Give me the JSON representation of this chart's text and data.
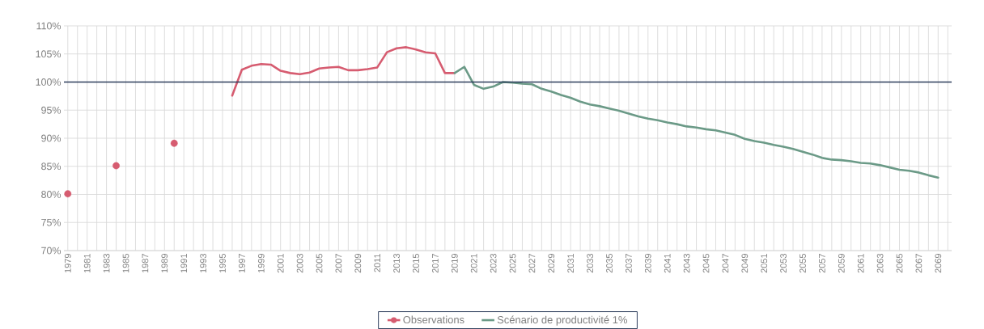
{
  "chart_data": {
    "type": "line",
    "grid": true,
    "legend": "bottom",
    "xlim": [
      1978.6,
      2070.4
    ],
    "ylim": [
      70,
      110
    ],
    "yticks": [
      {
        "value": 70,
        "label": "70%"
      },
      {
        "value": 75,
        "label": "75%"
      },
      {
        "value": 80,
        "label": "80%"
      },
      {
        "value": 85,
        "label": "85%"
      },
      {
        "value": 90,
        "label": "90%"
      },
      {
        "value": 95,
        "label": "95%"
      },
      {
        "value": 100,
        "label": "100%"
      },
      {
        "value": 105,
        "label": "105%"
      },
      {
        "value": 110,
        "label": "110%"
      }
    ],
    "xticks": [
      1979,
      {
        "value": 1980,
        "label": null
      },
      1981,
      {
        "value": 1982,
        "label": null
      },
      1983,
      {
        "value": 1984,
        "label": null
      },
      1985,
      {
        "value": 1986,
        "label": null
      },
      1987,
      {
        "value": 1988,
        "label": null
      },
      1989,
      {
        "value": 1990,
        "label": null
      },
      1991,
      {
        "value": 1992,
        "label": null
      },
      1993,
      {
        "value": 1994,
        "label": null
      },
      1995,
      {
        "value": 1996,
        "label": null
      },
      1997,
      {
        "value": 1998,
        "label": null
      },
      1999,
      {
        "value": 2000,
        "label": null
      },
      2001,
      {
        "value": 2002,
        "label": null
      },
      2003,
      {
        "value": 2004,
        "label": null
      },
      2005,
      {
        "value": 2006,
        "label": null
      },
      2007,
      {
        "value": 2008,
        "label": null
      },
      2009,
      {
        "value": 2010,
        "label": null
      },
      2011,
      {
        "value": 2012,
        "label": null
      },
      2013,
      {
        "value": 2014,
        "label": null
      },
      2015,
      {
        "value": 2016,
        "label": null
      },
      2017,
      {
        "value": 2018,
        "label": null
      },
      2019,
      {
        "value": 2020,
        "label": null
      },
      2021,
      {
        "value": 2022,
        "label": null
      },
      2023,
      {
        "value": 2024,
        "label": null
      },
      2025,
      {
        "value": 2026,
        "label": null
      },
      2027,
      {
        "value": 2028,
        "label": null
      },
      2029,
      {
        "value": 2030,
        "label": null
      },
      2031,
      {
        "value": 2032,
        "label": null
      },
      2033,
      {
        "value": 2034,
        "label": null
      },
      2035,
      {
        "value": 2036,
        "label": null
      },
      2037,
      {
        "value": 2038,
        "label": null
      },
      2039,
      {
        "value": 2040,
        "label": null
      },
      2041,
      {
        "value": 2042,
        "label": null
      },
      2043,
      {
        "value": 2044,
        "label": null
      },
      2045,
      {
        "value": 2046,
        "label": null
      },
      2047,
      {
        "value": 2048,
        "label": null
      },
      2049,
      {
        "value": 2050,
        "label": null
      },
      2051,
      {
        "value": 2052,
        "label": null
      },
      2053,
      {
        "value": 2054,
        "label": null
      },
      2055,
      {
        "value": 2056,
        "label": null
      },
      2057,
      {
        "value": 2058,
        "label": null
      },
      2059,
      {
        "value": 2060,
        "label": null
      },
      2061,
      {
        "value": 2062,
        "label": null
      },
      2063,
      {
        "value": 2064,
        "label": null
      },
      2065,
      {
        "value": 2066,
        "label": null
      },
      2067,
      {
        "value": 2068,
        "label": null
      },
      2069,
      {
        "value": 2070,
        "label": null
      }
    ],
    "ref_lines": [
      {
        "axis": "y",
        "value": 100,
        "color": "#2e3e5c"
      }
    ],
    "series": [
      {
        "name": "Observations",
        "color": "#d65c70",
        "x": [
          1979,
          1980,
          1981,
          1982,
          1983,
          1984,
          1985,
          1986,
          1987,
          1988,
          1989,
          1990,
          1991,
          1992,
          1993,
          1994,
          1995,
          1996,
          1997,
          1998,
          1999,
          2000,
          2001,
          2002,
          2003,
          2004,
          2005,
          2006,
          2007,
          2008,
          2009,
          2010,
          2011,
          2012,
          2013,
          2014,
          2015,
          2016,
          2017,
          2018,
          2019
        ],
        "values": [
          80.1,
          null,
          null,
          null,
          null,
          85.1,
          null,
          null,
          null,
          null,
          null,
          89.1,
          null,
          null,
          null,
          null,
          null,
          97.6,
          102.2,
          102.9,
          103.2,
          103.1,
          102.0,
          101.6,
          101.4,
          101.7,
          102.4,
          102.6,
          102.7,
          102.1,
          102.1,
          102.3,
          102.6,
          105.3,
          106.0,
          106.2,
          105.8,
          105.3,
          105.1,
          101.6,
          101.6
        ]
      },
      {
        "name": "Scénario de productivité 1%",
        "color": "#6b9a87",
        "x": [
          2019,
          2020,
          2021,
          2022,
          2023,
          2024,
          2025,
          2026,
          2027,
          2028,
          2029,
          2030,
          2031,
          2032,
          2033,
          2034,
          2035,
          2036,
          2037,
          2038,
          2039,
          2040,
          2041,
          2042,
          2043,
          2044,
          2045,
          2046,
          2047,
          2048,
          2049,
          2050,
          2051,
          2052,
          2053,
          2054,
          2055,
          2056,
          2057,
          2058,
          2059,
          2060,
          2061,
          2062,
          2063,
          2064,
          2065,
          2066,
          2067,
          2068,
          2069
        ],
        "values": [
          101.6,
          102.7,
          99.5,
          98.8,
          99.2,
          100.0,
          99.9,
          99.7,
          99.6,
          98.8,
          98.3,
          97.7,
          97.2,
          96.5,
          96.0,
          95.7,
          95.3,
          94.9,
          94.4,
          93.9,
          93.5,
          93.2,
          92.8,
          92.5,
          92.1,
          91.9,
          91.6,
          91.4,
          91.0,
          90.6,
          89.9,
          89.5,
          89.2,
          88.8,
          88.5,
          88.1,
          87.6,
          87.1,
          86.5,
          86.2,
          86.1,
          85.9,
          85.6,
          85.5,
          85.2,
          84.8,
          84.4,
          84.2,
          83.9,
          83.4,
          83.0
        ]
      }
    ]
  }
}
